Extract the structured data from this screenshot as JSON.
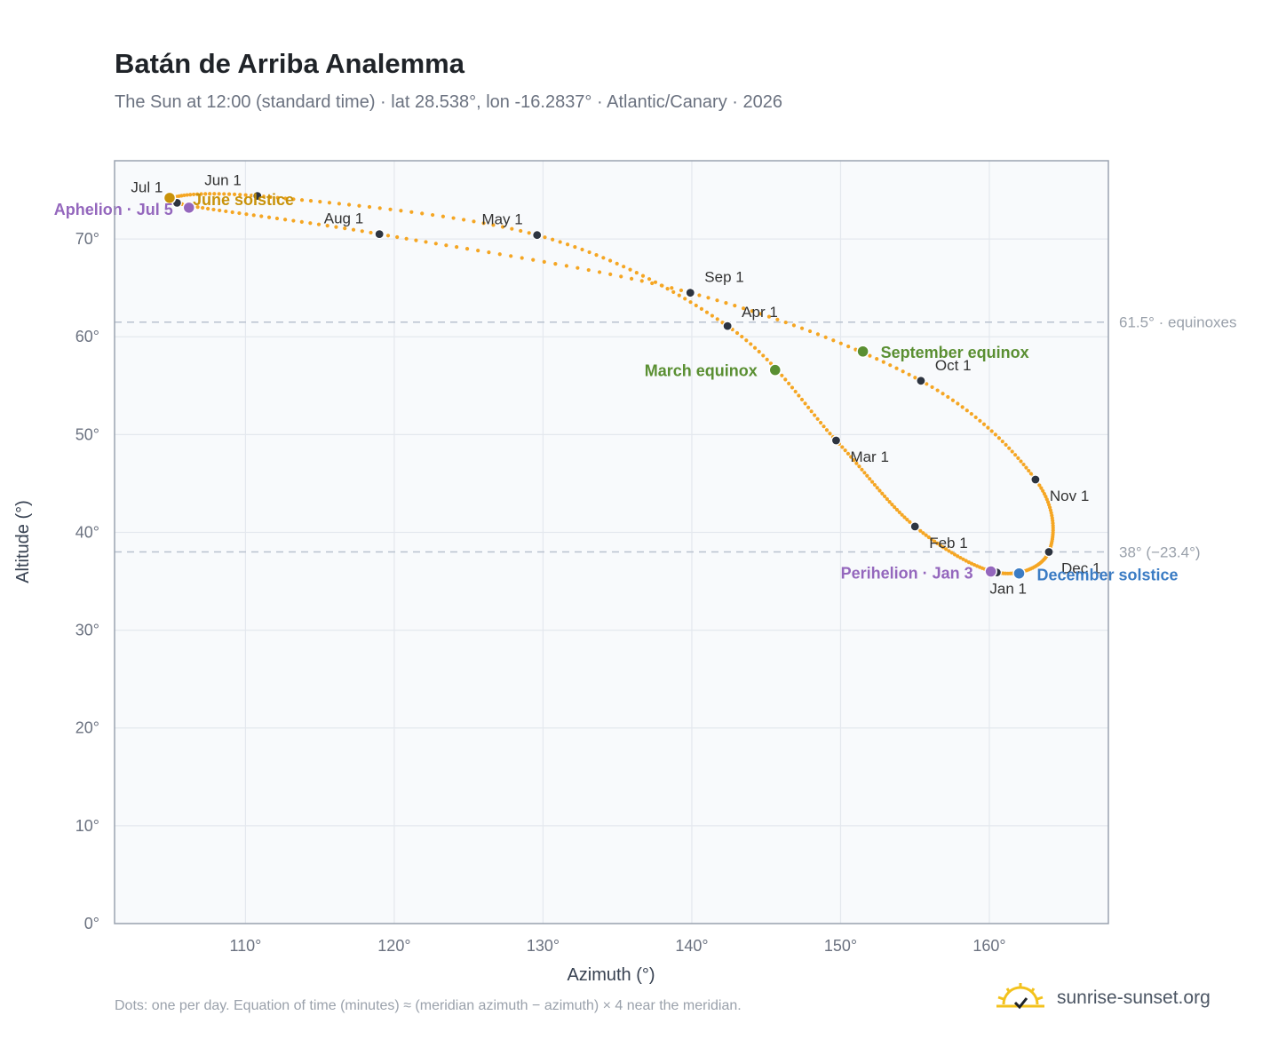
{
  "header": {
    "title": "Batán de Arriba Analemma",
    "subtitle": "The Sun at 12:00 (standard time) · lat 28.538°, lon -16.2837° · Atlantic/Canary · 2026"
  },
  "footer": {
    "note": "Dots: one per day. Equation of time (minutes) ≈ (meridian azimuth − azimuth) × 4 near the meridian.",
    "brand": "sunrise-sunset.org",
    "brand_icon": "sun-check-icon"
  },
  "colors": {
    "curve": "#f5a623",
    "month_dot": "#2d3440",
    "equinox": "#5a8f32",
    "june_solstice": "#c8920a",
    "december_solstice": "#3b7cc4",
    "apsis": "#9467bd",
    "reference_line": "#b9c2cf",
    "plot_bg": "#f8fafc",
    "grid": "#e4e8ee"
  },
  "chart_data": {
    "type": "scatter",
    "title": "Batán de Arriba Analemma",
    "xlabel": "Azimuth (°)",
    "ylabel": "Altitude (°)",
    "xlim": [
      101.2,
      168.0
    ],
    "ylim": [
      0,
      78
    ],
    "x_ticks": [
      110,
      120,
      130,
      140,
      150,
      160
    ],
    "x_tick_labels": [
      "110°",
      "120°",
      "130°",
      "140°",
      "150°",
      "160°"
    ],
    "y_ticks": [
      0,
      10,
      20,
      30,
      40,
      50,
      60,
      70
    ],
    "y_tick_labels": [
      "0°",
      "10°",
      "20°",
      "30°",
      "40°",
      "50°",
      "60°",
      "70°"
    ],
    "grid": true,
    "monthly_points": [
      {
        "date": "Jan 1",
        "azimuth": 160.5,
        "altitude": 35.9
      },
      {
        "date": "Feb 1",
        "azimuth": 155.0,
        "altitude": 40.6
      },
      {
        "date": "Mar 1",
        "azimuth": 149.7,
        "altitude": 49.4
      },
      {
        "date": "Apr 1",
        "azimuth": 142.4,
        "altitude": 61.1
      },
      {
        "date": "May 1",
        "azimuth": 129.6,
        "altitude": 70.4
      },
      {
        "date": "Jun 1",
        "azimuth": 110.8,
        "altitude": 74.4
      },
      {
        "date": "Jul 1",
        "azimuth": 105.4,
        "altitude": 73.7
      },
      {
        "date": "Aug 1",
        "azimuth": 119.0,
        "altitude": 70.5
      },
      {
        "date": "Sep 1",
        "azimuth": 139.9,
        "altitude": 64.5
      },
      {
        "date": "Oct 1",
        "azimuth": 155.4,
        "altitude": 55.5
      },
      {
        "date": "Nov 1",
        "azimuth": 163.1,
        "altitude": 45.4
      },
      {
        "date": "Dec 1",
        "azimuth": 164.0,
        "altitude": 38.0
      }
    ],
    "events": [
      {
        "label": "March equinox",
        "azimuth": 145.6,
        "altitude": 56.6,
        "color_key": "equinox"
      },
      {
        "label": "June solstice",
        "azimuth": 104.9,
        "altitude": 74.2,
        "color_key": "june_solstice"
      },
      {
        "label": "September equinox",
        "azimuth": 151.5,
        "altitude": 58.5,
        "color_key": "equinox"
      },
      {
        "label": "December solstice",
        "azimuth": 162.0,
        "altitude": 35.8,
        "color_key": "december_solstice"
      },
      {
        "label": "Perihelion · Jan 3",
        "azimuth": 160.1,
        "altitude": 36.0,
        "color_key": "apsis"
      },
      {
        "label": "Aphelion · Jul 5",
        "azimuth": 106.2,
        "altitude": 73.2,
        "color_key": "apsis"
      }
    ],
    "reference_lines": [
      {
        "altitude": 61.5,
        "label": "61.5° · equinoxes"
      },
      {
        "altitude": 38.0,
        "label": "38° (−23.4°)"
      }
    ],
    "legend": "none"
  }
}
